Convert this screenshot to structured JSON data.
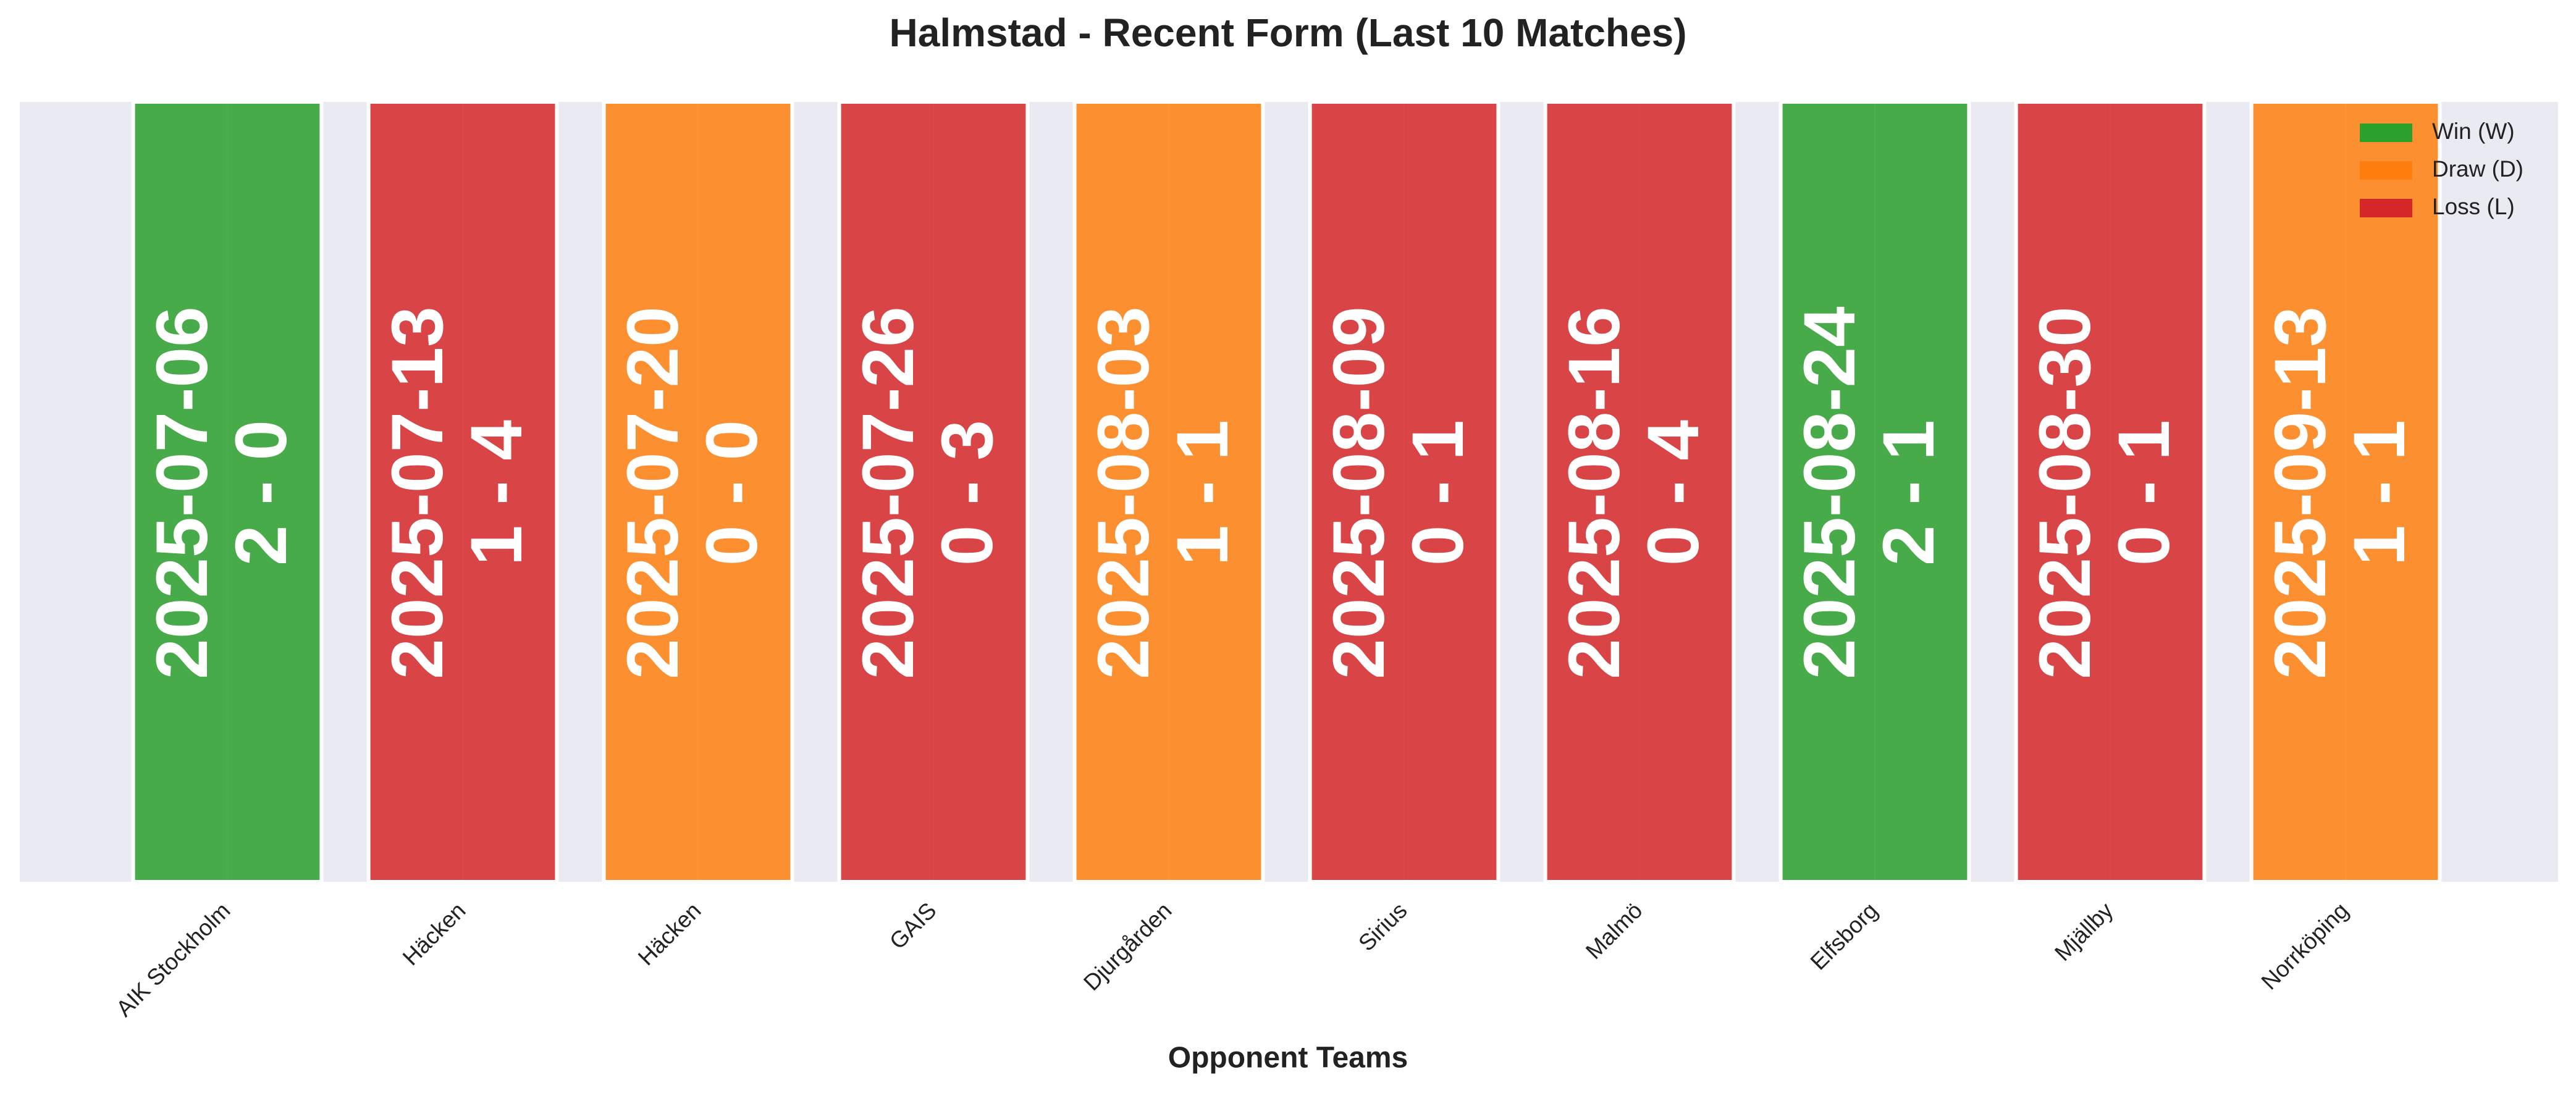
{
  "chart_data": {
    "type": "form",
    "title": "Halmstad - Recent Form (Last 10 Matches)",
    "x_label": "Opponent Teams",
    "categories": [
      "AIK Stockholm",
      "Häcken",
      "Häcken",
      "GAIS",
      "Djurgården",
      "Sirius",
      "Malmö",
      "Elfsborg",
      "Mjällby",
      "Norrköping"
    ],
    "dates": [
      "2025-07-06",
      "2025-07-13",
      "2025-07-20",
      "2025-07-26",
      "2025-08-03",
      "2025-08-09",
      "2025-08-16",
      "2025-08-24",
      "2025-08-30",
      "2025-09-13"
    ],
    "scores": [
      "2 - 0",
      "1 - 4",
      "0 - 0",
      "0 - 3",
      "1 - 1",
      "0 - 1",
      "0 - 4",
      "2 - 1",
      "0 - 1",
      "1 - 1"
    ],
    "results": [
      "W",
      "L",
      "D",
      "L",
      "D",
      "L",
      "L",
      "W",
      "L",
      "D"
    ],
    "legend": [
      {
        "key": "W",
        "name": "Win (W)",
        "color": "#2ca02c"
      },
      {
        "key": "D",
        "name": "Draw (D)",
        "color": "#ff7f0e"
      },
      {
        "key": "L",
        "name": "Loss (L)",
        "color": "#d62728"
      }
    ],
    "legend_position": "upper right",
    "grid": true
  }
}
